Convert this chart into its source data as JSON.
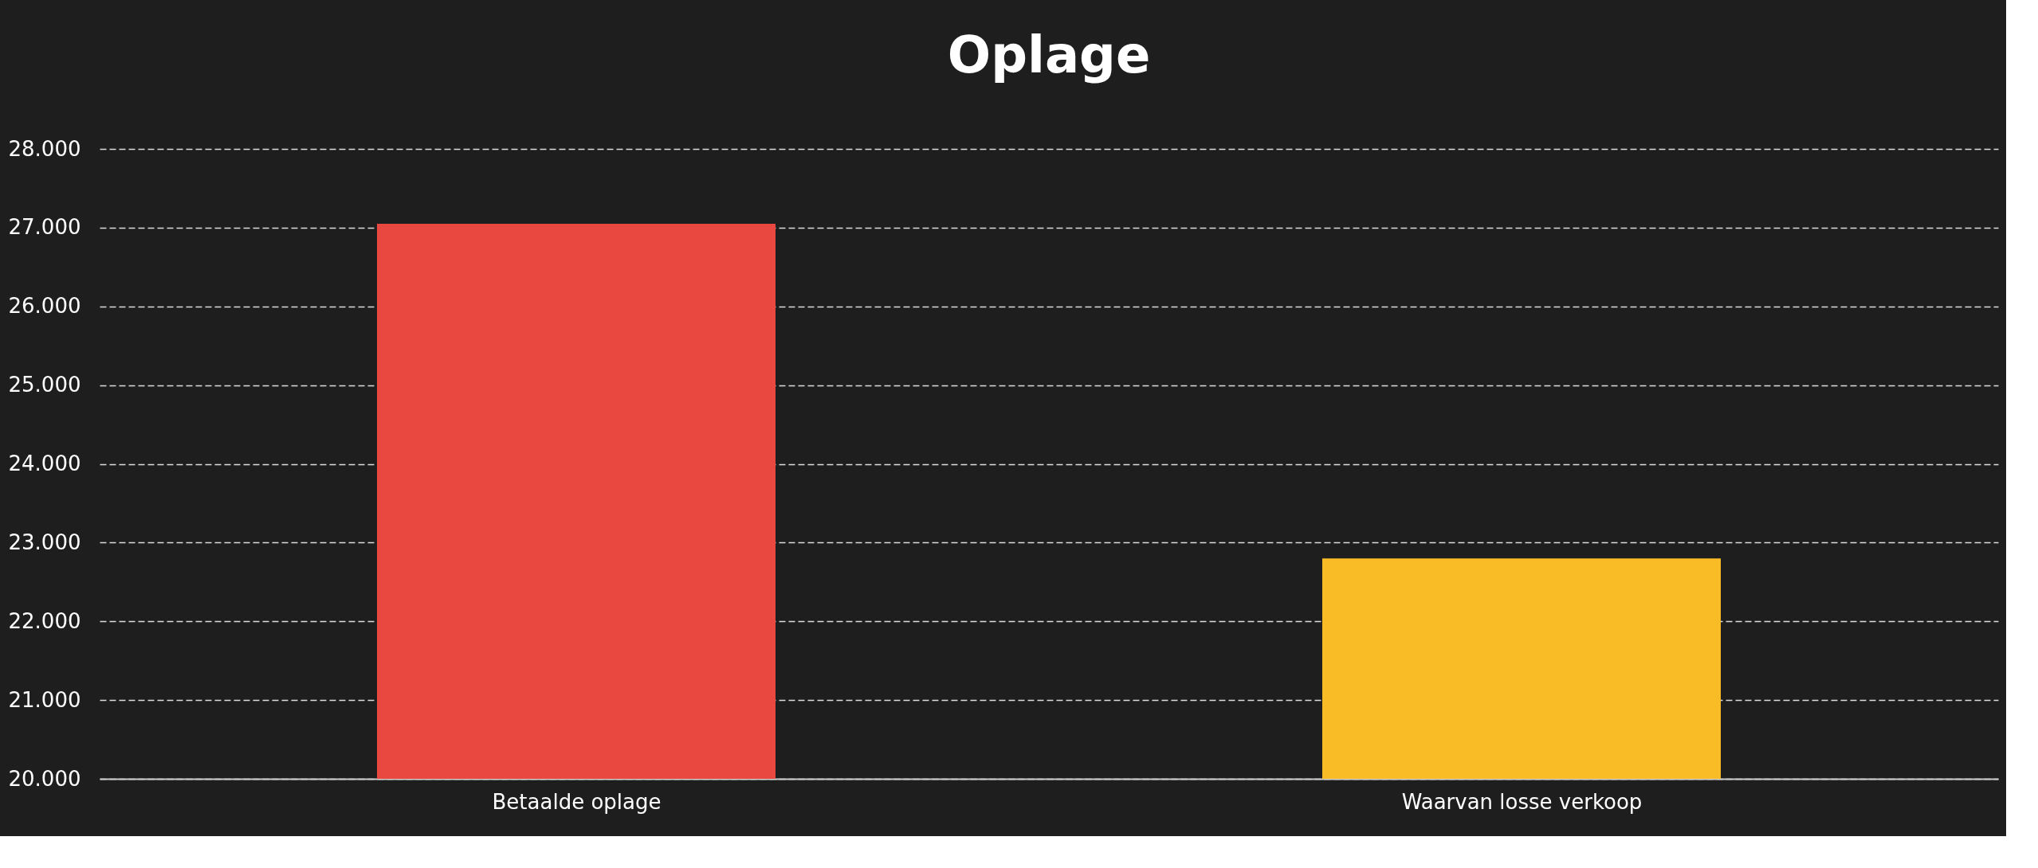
{
  "chart_data": {
    "type": "bar",
    "title": "Oplage",
    "categories": [
      "Betaalde oplage",
      "Waarvan losse verkoop"
    ],
    "values": [
      27050,
      22800
    ],
    "colors": [
      "#e84840",
      "#f9bb26"
    ],
    "ylim": [
      20000,
      28000
    ],
    "yticks": [
      {
        "value": 20000,
        "label": "20.000"
      },
      {
        "value": 21000,
        "label": "21.000"
      },
      {
        "value": 22000,
        "label": "22.000"
      },
      {
        "value": 23000,
        "label": "23.000"
      },
      {
        "value": 24000,
        "label": "24.000"
      },
      {
        "value": 25000,
        "label": "25.000"
      },
      {
        "value": 26000,
        "label": "26.000"
      },
      {
        "value": 27000,
        "label": "27.000"
      },
      {
        "value": 28000,
        "label": "28.000"
      }
    ],
    "grid": "y",
    "legend": false
  }
}
